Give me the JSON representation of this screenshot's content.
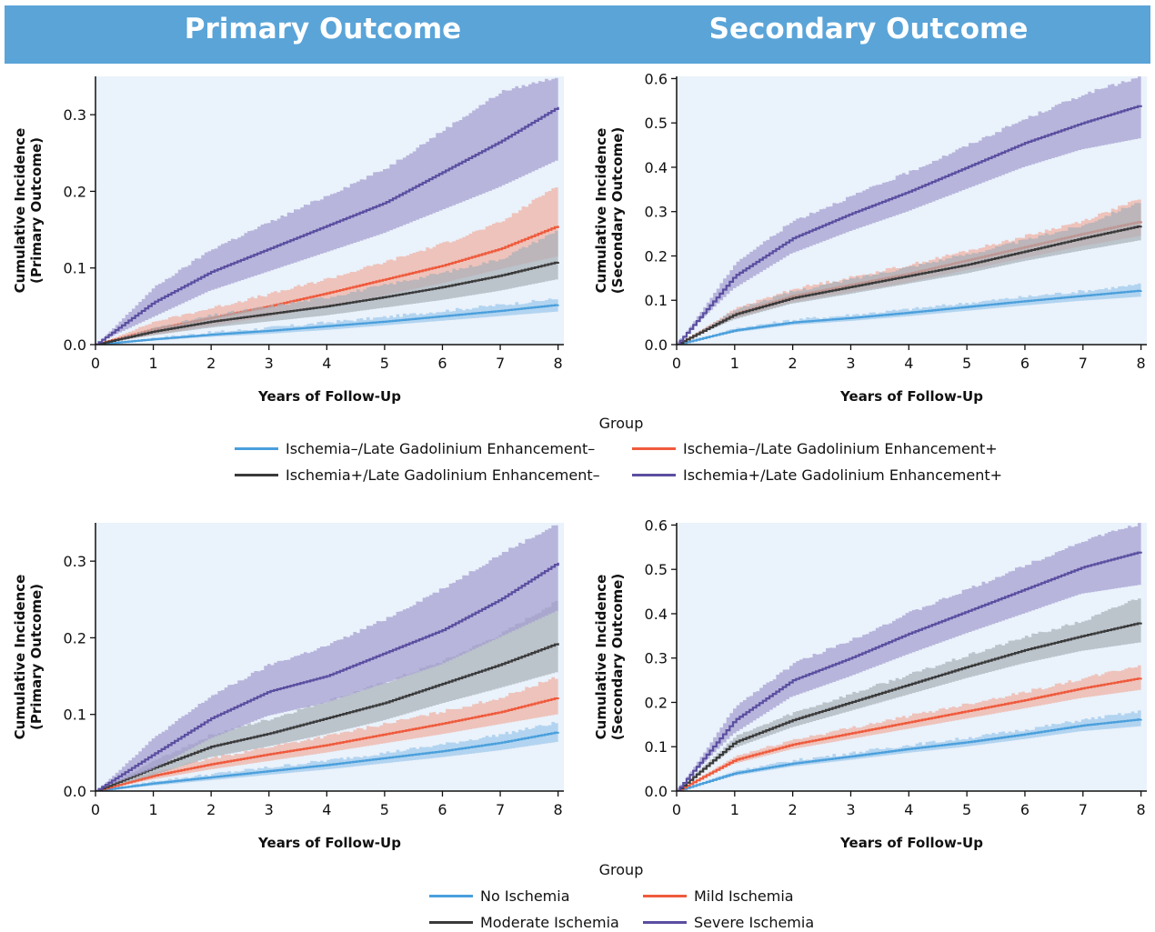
{
  "header": {
    "left_title": "Primary Outcome",
    "right_title": "Secondary Outcome",
    "color": "#5aa4d8"
  },
  "legends": [
    {
      "title": "Group",
      "items": [
        {
          "label": "Ischemia–/Late Gadolinium Enhancement–",
          "color": "#4a9fdc"
        },
        {
          "label": "Ischemia–/Late Gadolinium Enhancement+",
          "color": "#ef5a3c"
        },
        {
          "label": "Ischemia+/Late Gadolinium Enhancement–",
          "color": "#3a3a3a"
        },
        {
          "label": "Ischemia+/Late Gadolinium Enhancement+",
          "color": "#5a4ea0"
        }
      ]
    },
    {
      "title": "Group",
      "items": [
        {
          "label": "No Ischemia",
          "color": "#4a9fdc"
        },
        {
          "label": "Mild Ischemia",
          "color": "#ef5a3c"
        },
        {
          "label": "Moderate Ischemia",
          "color": "#3a3a3a"
        },
        {
          "label": "Severe Ischemia",
          "color": "#5a4ea0"
        }
      ]
    }
  ],
  "chart_data": [
    {
      "type": "line",
      "title": "",
      "xlabel": "Years of Follow-Up",
      "ylabel": "Cumulative Incidence\n(Primary Outcome)",
      "xlim": [
        0,
        8.1
      ],
      "ylim": [
        0,
        0.35
      ],
      "xticks": [
        0,
        1,
        2,
        3,
        4,
        5,
        6,
        7,
        8
      ],
      "yticks": [
        0.0,
        0.1,
        0.2,
        0.3
      ],
      "ytick_labels": [
        "0.0",
        "0.1",
        "0.2",
        "0.3"
      ],
      "x": [
        0,
        1,
        2,
        3,
        4,
        5,
        6,
        7,
        8
      ],
      "series": [
        {
          "name": "Ischemia–/Late Gadolinium Enhancement–",
          "color": "#4a9fdc",
          "band": "#9cc8ec",
          "values": [
            0,
            0.007,
            0.013,
            0.018,
            0.024,
            0.03,
            0.037,
            0.044,
            0.052
          ],
          "lower": [
            0,
            0.005,
            0.01,
            0.014,
            0.019,
            0.025,
            0.031,
            0.037,
            0.043
          ],
          "upper": [
            0,
            0.009,
            0.016,
            0.022,
            0.029,
            0.036,
            0.044,
            0.052,
            0.06
          ]
        },
        {
          "name": "Ischemia–/Late Gadolinium Enhancement+",
          "color": "#ef5a3c",
          "band": "#f0b0a2",
          "values": [
            0,
            0.02,
            0.035,
            0.05,
            0.067,
            0.085,
            0.103,
            0.125,
            0.155
          ],
          "lower": [
            0,
            0.012,
            0.024,
            0.036,
            0.05,
            0.064,
            0.08,
            0.098,
            0.115
          ],
          "upper": [
            0,
            0.03,
            0.048,
            0.066,
            0.086,
            0.108,
            0.132,
            0.16,
            0.21
          ]
        },
        {
          "name": "Ischemia+/Late Gadolinium Enhancement–",
          "color": "#3a3a3a",
          "band": "#a9b0b8",
          "values": [
            0,
            0.017,
            0.03,
            0.04,
            0.05,
            0.062,
            0.075,
            0.09,
            0.108
          ],
          "lower": [
            0,
            0.012,
            0.022,
            0.03,
            0.038,
            0.048,
            0.058,
            0.07,
            0.085
          ],
          "upper": [
            0,
            0.022,
            0.038,
            0.05,
            0.062,
            0.078,
            0.094,
            0.112,
            0.15
          ]
        },
        {
          "name": "Ischemia+/Late Gadolinium Enhancement+",
          "color": "#5a4ea0",
          "band": "#a49dd0",
          "values": [
            0,
            0.055,
            0.095,
            0.125,
            0.155,
            0.185,
            0.225,
            0.265,
            0.31
          ],
          "lower": [
            0,
            0.035,
            0.07,
            0.095,
            0.12,
            0.145,
            0.175,
            0.205,
            0.24
          ],
          "upper": [
            0,
            0.075,
            0.125,
            0.16,
            0.195,
            0.23,
            0.28,
            0.33,
            0.35
          ]
        }
      ]
    },
    {
      "type": "line",
      "title": "",
      "xlabel": "Years of Follow-Up",
      "ylabel": "Cumulative Incidence\n(Secondary Outcome)",
      "xlim": [
        0,
        8.1
      ],
      "ylim": [
        0,
        0.605
      ],
      "xticks": [
        0,
        1,
        2,
        3,
        4,
        5,
        6,
        7,
        8
      ],
      "yticks": [
        0.0,
        0.1,
        0.2,
        0.3,
        0.4,
        0.5,
        0.6
      ],
      "ytick_labels": [
        "0.0",
        "0.1",
        "0.2",
        "0.3",
        "0.4",
        "0.5",
        "0.6"
      ],
      "x": [
        0,
        1,
        2,
        3,
        4,
        5,
        6,
        7,
        8
      ],
      "series": [
        {
          "name": "Ischemia–/Late Gadolinium Enhancement–",
          "color": "#4a9fdc",
          "band": "#9cc8ec",
          "values": [
            0,
            0.032,
            0.05,
            0.06,
            0.072,
            0.085,
            0.098,
            0.11,
            0.122
          ],
          "lower": [
            0,
            0.027,
            0.044,
            0.053,
            0.064,
            0.076,
            0.088,
            0.099,
            0.108
          ],
          "upper": [
            0,
            0.037,
            0.056,
            0.067,
            0.08,
            0.094,
            0.108,
            0.121,
            0.136
          ]
        },
        {
          "name": "Ischemia–/Late Gadolinium Enhancement+",
          "color": "#ef5a3c",
          "band": "#f0b0a2",
          "values": [
            0,
            0.07,
            0.11,
            0.135,
            0.16,
            0.19,
            0.22,
            0.25,
            0.278
          ],
          "lower": [
            0,
            0.058,
            0.095,
            0.118,
            0.14,
            0.168,
            0.195,
            0.222,
            0.245
          ],
          "upper": [
            0,
            0.082,
            0.126,
            0.152,
            0.18,
            0.212,
            0.245,
            0.28,
            0.33
          ]
        },
        {
          "name": "Ischemia+/Late Gadolinium Enhancement–",
          "color": "#3a3a3a",
          "band": "#a9b0b8",
          "values": [
            0,
            0.068,
            0.105,
            0.13,
            0.155,
            0.18,
            0.21,
            0.24,
            0.268
          ],
          "lower": [
            0,
            0.056,
            0.092,
            0.114,
            0.137,
            0.16,
            0.188,
            0.212,
            0.235
          ],
          "upper": [
            0,
            0.08,
            0.12,
            0.148,
            0.176,
            0.204,
            0.236,
            0.27,
            0.325
          ]
        },
        {
          "name": "Ischemia+/Late Gadolinium Enhancement+",
          "color": "#5a4ea0",
          "band": "#a49dd0",
          "values": [
            0,
            0.155,
            0.24,
            0.295,
            0.345,
            0.4,
            0.455,
            0.5,
            0.54
          ],
          "lower": [
            0,
            0.125,
            0.205,
            0.255,
            0.3,
            0.35,
            0.4,
            0.44,
            0.465
          ],
          "upper": [
            0,
            0.185,
            0.28,
            0.335,
            0.39,
            0.45,
            0.51,
            0.565,
            0.605
          ]
        }
      ]
    },
    {
      "type": "line",
      "title": "",
      "xlabel": "Years of Follow-Up",
      "ylabel": "Cumulative Incidence\n(Primary Outcome)",
      "xlim": [
        0,
        8.1
      ],
      "ylim": [
        0,
        0.35
      ],
      "xticks": [
        0,
        1,
        2,
        3,
        4,
        5,
        6,
        7,
        8
      ],
      "yticks": [
        0.0,
        0.1,
        0.2,
        0.3
      ],
      "ytick_labels": [
        "0.0",
        "0.1",
        "0.2",
        "0.3"
      ],
      "x": [
        0,
        1,
        2,
        3,
        4,
        5,
        6,
        7,
        8
      ],
      "series": [
        {
          "name": "No Ischemia",
          "color": "#4a9fdc",
          "band": "#9cc8ec",
          "values": [
            0,
            0.01,
            0.018,
            0.026,
            0.034,
            0.043,
            0.052,
            0.063,
            0.077
          ],
          "lower": [
            0,
            0.007,
            0.014,
            0.021,
            0.028,
            0.036,
            0.044,
            0.053,
            0.064
          ],
          "upper": [
            0,
            0.013,
            0.022,
            0.031,
            0.04,
            0.05,
            0.061,
            0.074,
            0.09
          ]
        },
        {
          "name": "Mild Ischemia",
          "color": "#ef5a3c",
          "band": "#f0b0a2",
          "values": [
            0,
            0.02,
            0.035,
            0.048,
            0.06,
            0.074,
            0.088,
            0.103,
            0.122
          ],
          "lower": [
            0,
            0.015,
            0.028,
            0.039,
            0.05,
            0.062,
            0.074,
            0.087,
            0.1
          ],
          "upper": [
            0,
            0.025,
            0.043,
            0.058,
            0.072,
            0.088,
            0.104,
            0.122,
            0.15
          ]
        },
        {
          "name": "Moderate Ischemia",
          "color": "#3a3a3a",
          "band": "#a9b0b8",
          "values": [
            0,
            0.03,
            0.058,
            0.075,
            0.095,
            0.115,
            0.14,
            0.165,
            0.193
          ],
          "lower": [
            0,
            0.02,
            0.044,
            0.058,
            0.074,
            0.092,
            0.114,
            0.134,
            0.155
          ],
          "upper": [
            0,
            0.04,
            0.074,
            0.094,
            0.118,
            0.142,
            0.17,
            0.205,
            0.25
          ]
        },
        {
          "name": "Severe Ischemia",
          "color": "#5a4ea0",
          "band": "#a49dd0",
          "values": [
            0,
            0.048,
            0.095,
            0.13,
            0.15,
            0.18,
            0.21,
            0.25,
            0.298
          ],
          "lower": [
            0,
            0.028,
            0.068,
            0.098,
            0.115,
            0.14,
            0.165,
            0.2,
            0.235
          ],
          "upper": [
            0,
            0.07,
            0.125,
            0.165,
            0.19,
            0.225,
            0.265,
            0.31,
            0.35
          ]
        }
      ]
    },
    {
      "type": "line",
      "title": "",
      "xlabel": "Years of Follow-Up",
      "ylabel": "Cumulative Incidence\n(Secondary Outcome)",
      "xlim": [
        0,
        8.1
      ],
      "ylim": [
        0,
        0.605
      ],
      "xticks": [
        0,
        1,
        2,
        3,
        4,
        5,
        6,
        7,
        8
      ],
      "yticks": [
        0.0,
        0.1,
        0.2,
        0.3,
        0.4,
        0.5,
        0.6
      ],
      "ytick_labels": [
        "0.0",
        "0.1",
        "0.2",
        "0.3",
        "0.4",
        "0.5",
        "0.6"
      ],
      "x": [
        0,
        1,
        2,
        3,
        4,
        5,
        6,
        7,
        8
      ],
      "series": [
        {
          "name": "No Ischemia",
          "color": "#4a9fdc",
          "band": "#9cc8ec",
          "values": [
            0,
            0.04,
            0.062,
            0.078,
            0.095,
            0.11,
            0.128,
            0.148,
            0.162
          ],
          "lower": [
            0,
            0.034,
            0.055,
            0.07,
            0.086,
            0.1,
            0.117,
            0.135,
            0.146
          ],
          "upper": [
            0,
            0.046,
            0.069,
            0.086,
            0.104,
            0.12,
            0.139,
            0.161,
            0.18
          ]
        },
        {
          "name": "Mild Ischemia",
          "color": "#ef5a3c",
          "band": "#f0b0a2",
          "values": [
            0,
            0.07,
            0.105,
            0.13,
            0.155,
            0.18,
            0.205,
            0.232,
            0.255
          ],
          "lower": [
            0,
            0.061,
            0.094,
            0.117,
            0.14,
            0.163,
            0.186,
            0.21,
            0.228
          ],
          "upper": [
            0,
            0.079,
            0.116,
            0.143,
            0.17,
            0.197,
            0.224,
            0.254,
            0.285
          ]
        },
        {
          "name": "Moderate Ischemia",
          "color": "#3a3a3a",
          "band": "#a9b0b8",
          "values": [
            0,
            0.11,
            0.16,
            0.2,
            0.24,
            0.28,
            0.318,
            0.35,
            0.38
          ],
          "lower": [
            0,
            0.096,
            0.143,
            0.18,
            0.217,
            0.254,
            0.288,
            0.316,
            0.335
          ],
          "upper": [
            0,
            0.124,
            0.177,
            0.22,
            0.263,
            0.306,
            0.348,
            0.384,
            0.44
          ]
        },
        {
          "name": "Severe Ischemia",
          "color": "#5a4ea0",
          "band": "#a49dd0",
          "values": [
            0,
            0.16,
            0.25,
            0.3,
            0.355,
            0.405,
            0.455,
            0.505,
            0.54
          ],
          "lower": [
            0,
            0.128,
            0.212,
            0.258,
            0.308,
            0.355,
            0.4,
            0.445,
            0.465
          ],
          "upper": [
            0,
            0.192,
            0.288,
            0.342,
            0.402,
            0.455,
            0.51,
            0.565,
            0.605
          ]
        }
      ]
    }
  ]
}
